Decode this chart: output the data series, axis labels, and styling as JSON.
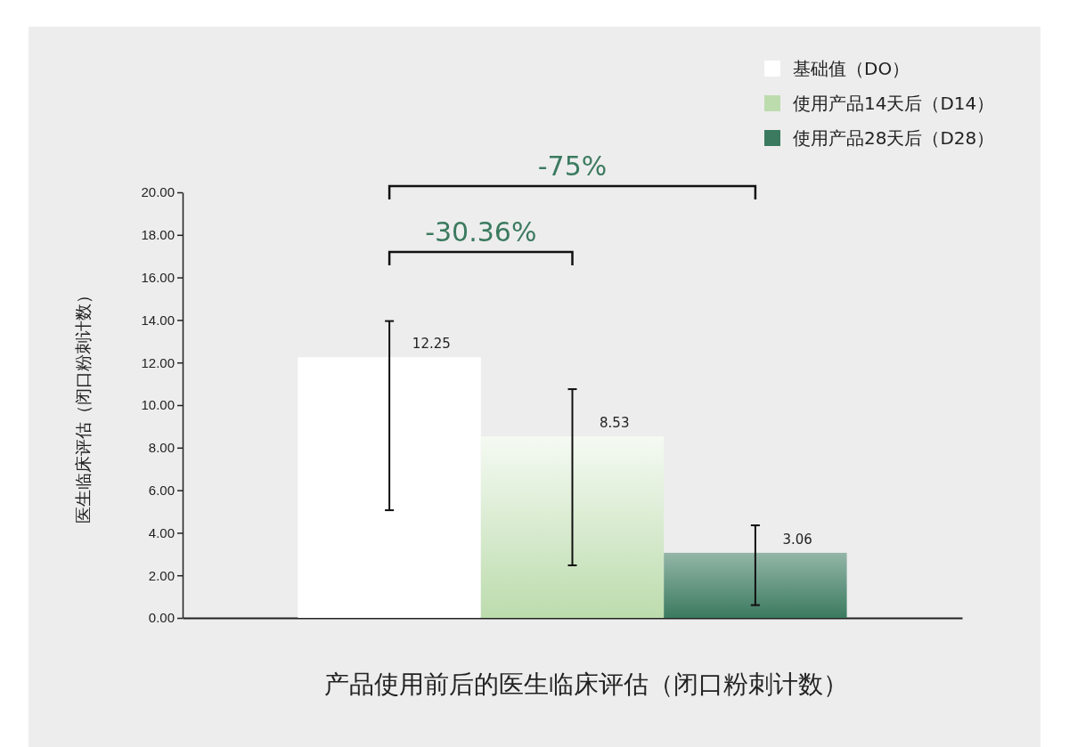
{
  "chart_data": {
    "type": "bar",
    "title": "产品使用前后的医生临床评估（闭口粉刺计数）",
    "ylabel": "医生临床评估（闭口粉刺计数）",
    "categories": [
      null
    ],
    "series": [
      {
        "name": "基础值（DO）",
        "color": "#ffffff",
        "values": [
          12.25
        ],
        "errors": [
          [
            5.06,
            13.95
          ]
        ]
      },
      {
        "name": "使用产品14天后（D14）",
        "color": "#bcdcad",
        "values": [
          8.53
        ],
        "errors": [
          [
            2.47,
            10.75
          ]
        ]
      },
      {
        "name": "使用产品28天后（D28）",
        "color": "#3b7a5f",
        "values": [
          3.06
        ],
        "errors": [
          [
            0.6,
            4.35
          ]
        ]
      }
    ],
    "ylim": [
      0,
      20
    ],
    "yticks": [
      {
        "value": 0,
        "label": "0.00"
      },
      {
        "value": 2,
        "label": "2.00"
      },
      {
        "value": 4,
        "label": "4.00"
      },
      {
        "value": 6,
        "label": "6.00"
      },
      {
        "value": 8,
        "label": "8.00"
      },
      {
        "value": 10,
        "label": "10.00"
      },
      {
        "value": 12,
        "label": "12.00"
      },
      {
        "value": 14,
        "label": "14.00"
      },
      {
        "value": 16,
        "label": "16.00"
      },
      {
        "value": 18,
        "label": "18.00"
      },
      {
        "value": 20,
        "label": "20.00"
      }
    ],
    "annotations": [
      "-30.36%",
      "-75%"
    ],
    "data_labels": true,
    "grid": false,
    "legend": "top right"
  }
}
